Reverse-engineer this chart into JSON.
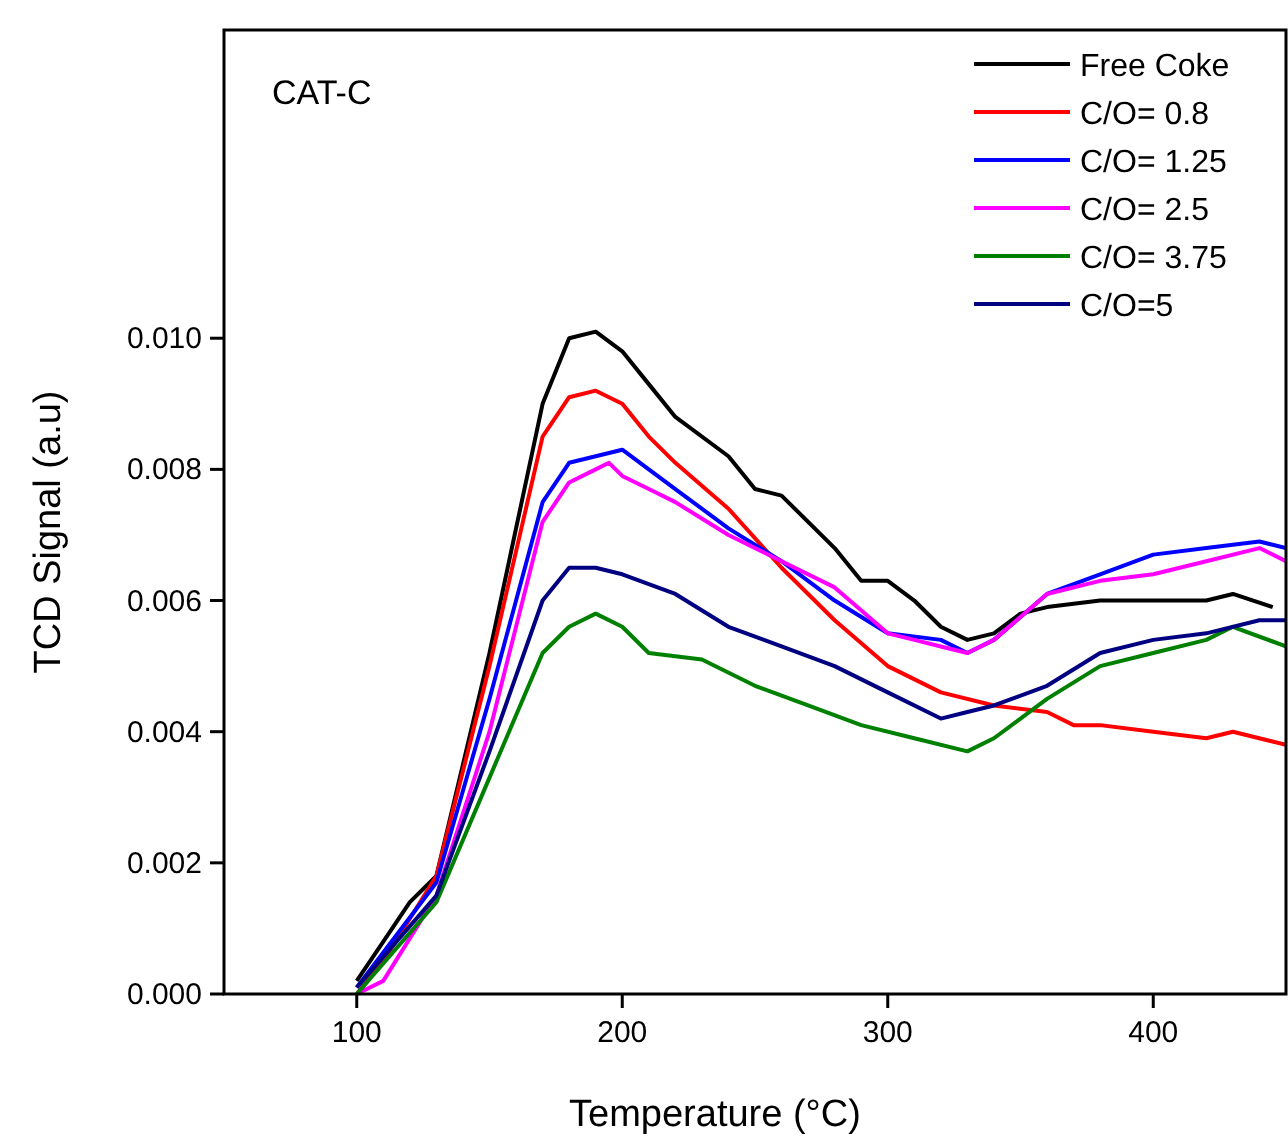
{
  "chart_data": {
    "type": "line",
    "xlabel": "Temperature (°C)",
    "ylabel": "TCD Signal (a.u)",
    "annotations": [
      "CAT-C"
    ],
    "xlim": [
      50,
      450
    ],
    "xticks": [
      100,
      200,
      300,
      400
    ],
    "ylim": [
      0,
      0.0147
    ],
    "yticks": [
      {
        "value": 0,
        "label": "0.000"
      },
      {
        "value": 0.002,
        "label": "0.002"
      },
      {
        "value": 0.004,
        "label": "0.004"
      },
      {
        "value": 0.006,
        "label": "0.006"
      },
      {
        "value": 0.008,
        "label": "0.008"
      },
      {
        "value": 0.01,
        "label": "0.010"
      }
    ],
    "legend": "top right",
    "grid": false,
    "line_style": "solid",
    "series": [
      {
        "name": "Free Coke",
        "color": "#000000",
        "x": [
          100,
          110,
          120,
          130,
          150,
          170,
          180,
          190,
          200,
          210,
          220,
          240,
          250,
          260,
          280,
          290,
          300,
          310,
          320,
          330,
          340,
          350,
          360,
          380,
          400,
          420,
          430,
          445
        ],
        "values": [
          0.0002,
          0.0008,
          0.0014,
          0.0018,
          0.0052,
          0.009,
          0.01,
          0.0101,
          0.0098,
          0.0093,
          0.0088,
          0.0082,
          0.0077,
          0.0076,
          0.0068,
          0.0063,
          0.0063,
          0.006,
          0.0056,
          0.0054,
          0.0055,
          0.0058,
          0.0059,
          0.006,
          0.006,
          0.006,
          0.0061,
          0.0059
        ]
      },
      {
        "name": "C/O= 0.8",
        "color": "#ff0000",
        "x": [
          100,
          110,
          130,
          150,
          170,
          180,
          190,
          200,
          210,
          220,
          240,
          260,
          280,
          300,
          320,
          340,
          360,
          370,
          380,
          400,
          420,
          430,
          450
        ],
        "values": [
          0,
          0.0005,
          0.0018,
          0.005,
          0.0085,
          0.0091,
          0.0092,
          0.009,
          0.0085,
          0.0081,
          0.0074,
          0.0065,
          0.0057,
          0.005,
          0.0046,
          0.0044,
          0.0043,
          0.0041,
          0.0041,
          0.004,
          0.0039,
          0.004,
          0.0038
        ]
      },
      {
        "name": "C/O= 1.25",
        "color": "#0000ff",
        "x": [
          100,
          130,
          150,
          170,
          180,
          190,
          200,
          210,
          220,
          240,
          260,
          280,
          300,
          320,
          330,
          340,
          360,
          380,
          400,
          420,
          440,
          450
        ],
        "values": [
          0.0001,
          0.0017,
          0.0045,
          0.0075,
          0.0081,
          0.0082,
          0.0083,
          0.008,
          0.0077,
          0.0071,
          0.0066,
          0.006,
          0.0055,
          0.0054,
          0.0052,
          0.0054,
          0.0061,
          0.0064,
          0.0067,
          0.0068,
          0.0069,
          0.0068
        ]
      },
      {
        "name": "C/O= 2.5",
        "color": "#ff00ff",
        "x": [
          100,
          110,
          130,
          150,
          170,
          180,
          190,
          195,
          200,
          210,
          220,
          240,
          260,
          280,
          300,
          310,
          320,
          330,
          340,
          360,
          380,
          400,
          420,
          440,
          450
        ],
        "values": [
          0,
          0.0002,
          0.0015,
          0.004,
          0.0072,
          0.0078,
          0.008,
          0.0081,
          0.0079,
          0.0077,
          0.0075,
          0.007,
          0.0066,
          0.0062,
          0.0055,
          0.0054,
          0.0053,
          0.0052,
          0.0054,
          0.0061,
          0.0063,
          0.0064,
          0.0066,
          0.0068,
          0.0066
        ]
      },
      {
        "name": "C/O= 3.75",
        "color": "#008000",
        "x": [
          100,
          130,
          150,
          170,
          180,
          190,
          200,
          210,
          230,
          250,
          270,
          290,
          310,
          330,
          340,
          350,
          360,
          380,
          400,
          420,
          430,
          450
        ],
        "values": [
          0,
          0.0014,
          0.0033,
          0.0052,
          0.0056,
          0.0058,
          0.0056,
          0.0052,
          0.0051,
          0.0047,
          0.0044,
          0.0041,
          0.0039,
          0.0037,
          0.0039,
          0.0042,
          0.0045,
          0.005,
          0.0052,
          0.0054,
          0.0056,
          0.0053
        ]
      },
      {
        "name": "C/O=5",
        "color": "#000080",
        "x": [
          100,
          130,
          150,
          170,
          180,
          190,
          200,
          220,
          240,
          260,
          280,
          300,
          320,
          330,
          340,
          360,
          380,
          400,
          420,
          440,
          450
        ],
        "values": [
          0.0001,
          0.0015,
          0.0037,
          0.006,
          0.0065,
          0.0065,
          0.0064,
          0.0061,
          0.0056,
          0.0053,
          0.005,
          0.0046,
          0.0042,
          0.0043,
          0.0044,
          0.0047,
          0.0052,
          0.0054,
          0.0055,
          0.0057,
          0.0057
        ]
      }
    ]
  }
}
